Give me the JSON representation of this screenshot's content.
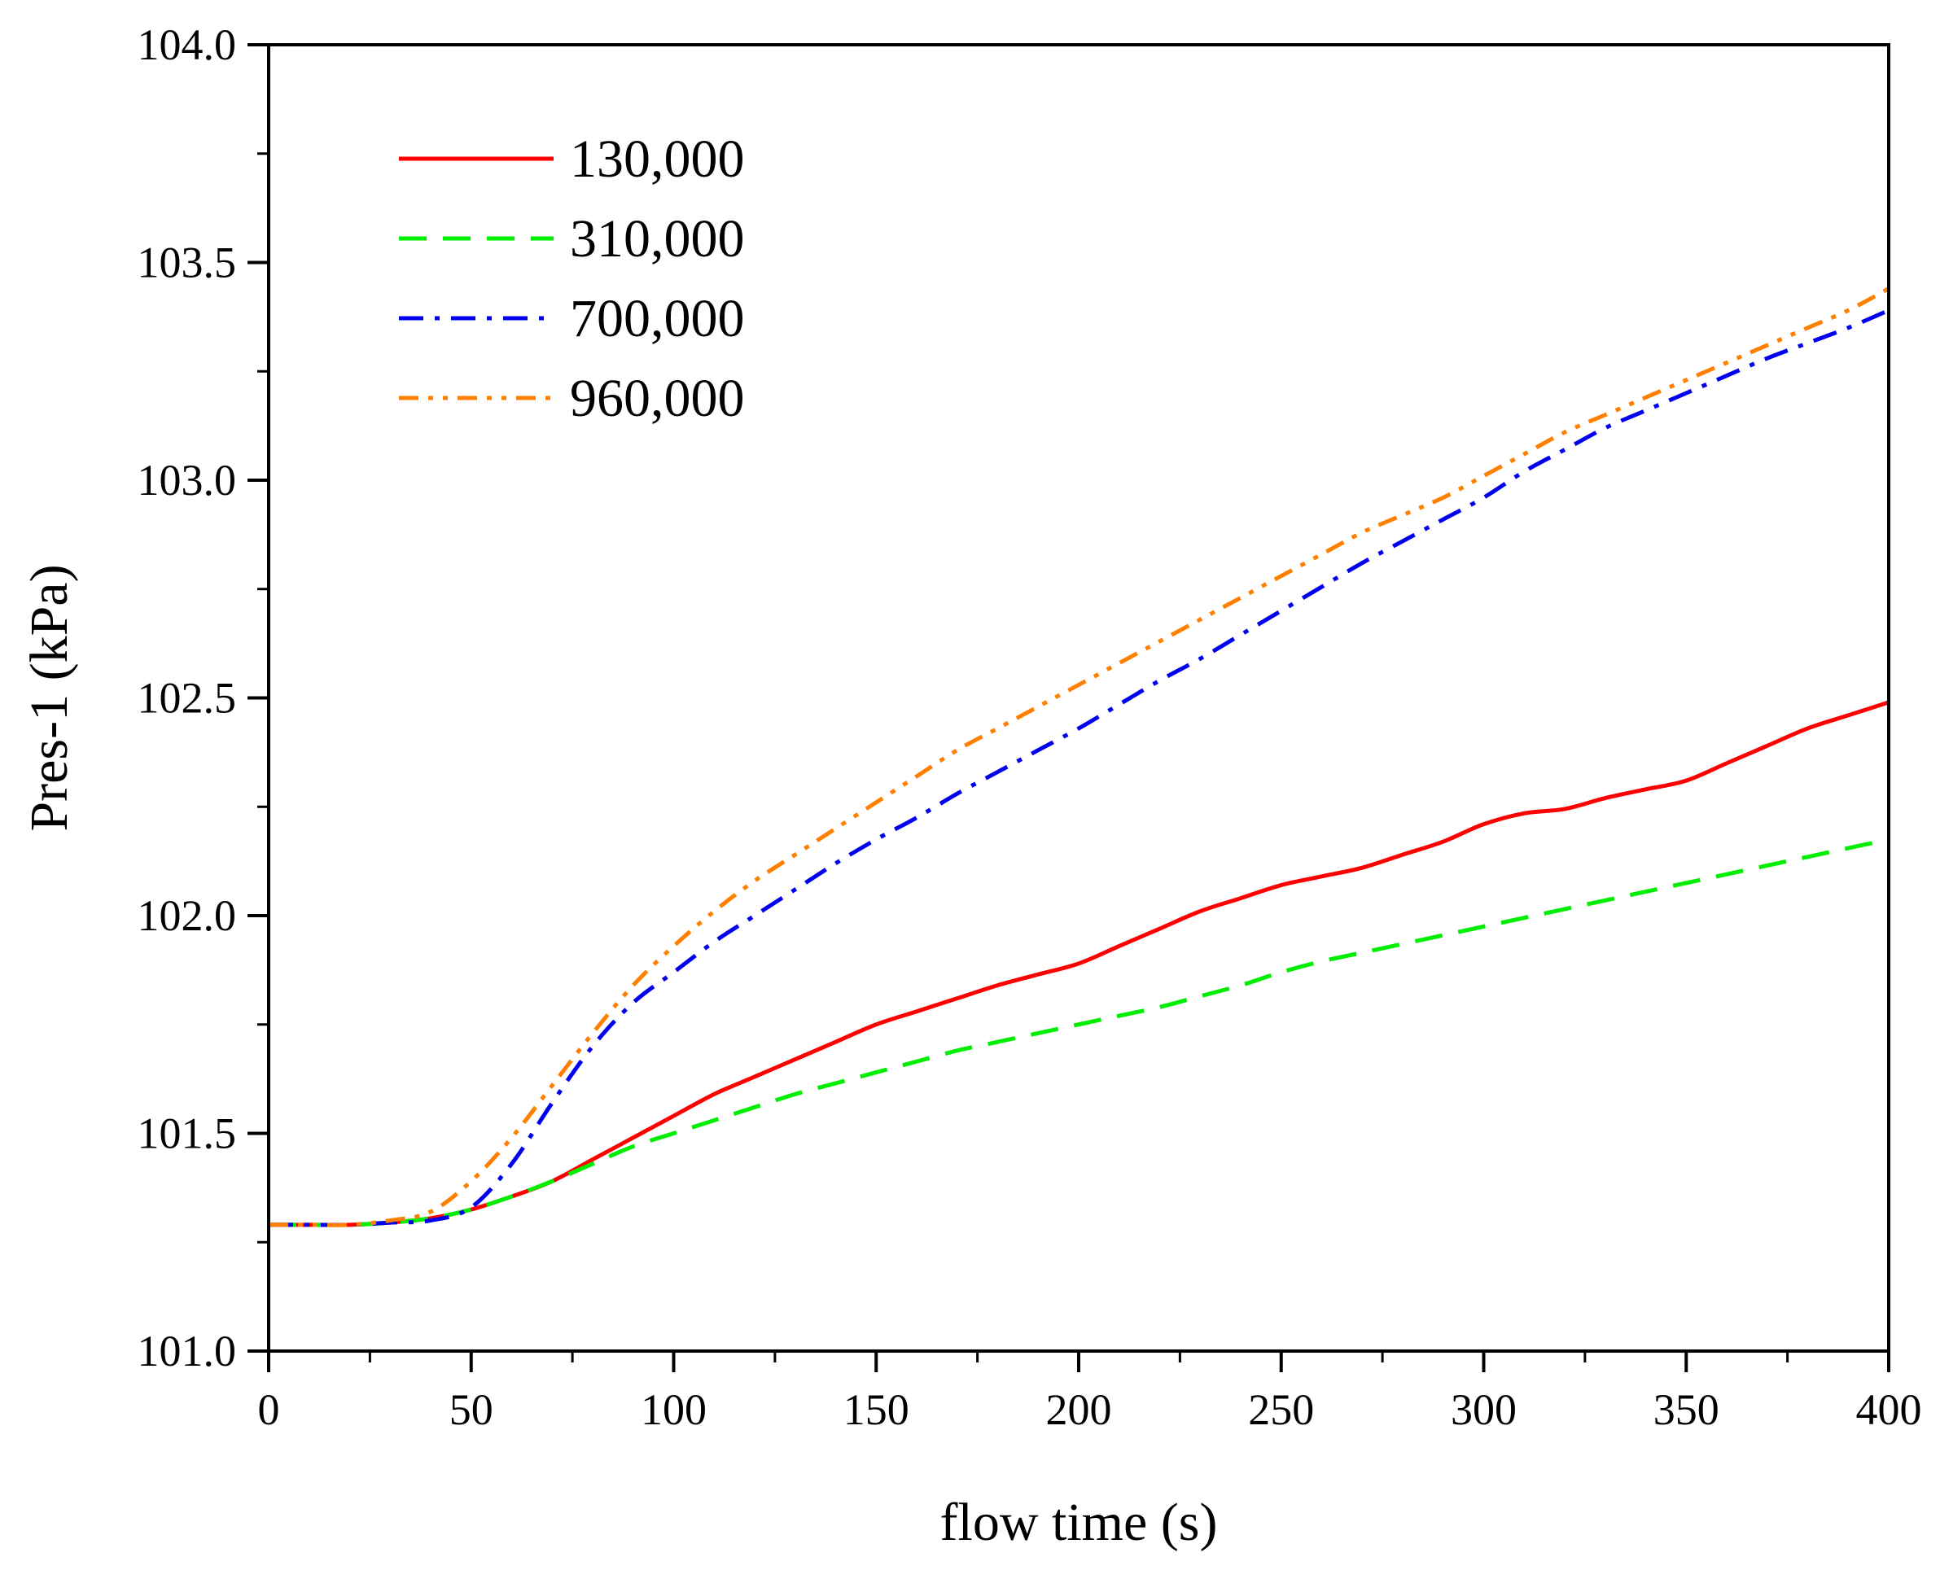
{
  "chart_data": {
    "type": "line",
    "title": "",
    "xlabel": "flow time (s)",
    "ylabel": "Pres-1 (kPa)",
    "xlim": [
      0,
      400
    ],
    "ylim": [
      101.0,
      104.0
    ],
    "xticks": [
      0,
      50,
      100,
      150,
      200,
      250,
      300,
      350,
      400
    ],
    "xtick_labels": [
      "0",
      "50",
      "100",
      "150",
      "200",
      "250",
      "300",
      "350",
      "400"
    ],
    "yticks": [
      101.0,
      101.5,
      102.0,
      102.5,
      103.0,
      103.5,
      104.0
    ],
    "ytick_labels": [
      "101.0",
      "101.5",
      "102.0",
      "102.5",
      "103.0",
      "103.5",
      "104.0"
    ],
    "grid": false,
    "legend_position": "top-left",
    "series": [
      {
        "name": "130,000",
        "color": "#ff0000",
        "style": "solid",
        "x": [
          0,
          10,
          20,
          30,
          40,
          50,
          60,
          70,
          80,
          90,
          100,
          110,
          120,
          130,
          140,
          150,
          160,
          170,
          180,
          190,
          200,
          210,
          220,
          230,
          240,
          250,
          260,
          270,
          280,
          290,
          300,
          310,
          320,
          330,
          340,
          350,
          360,
          370,
          380,
          390,
          400
        ],
        "y": [
          101.29,
          101.29,
          101.29,
          101.295,
          101.305,
          101.325,
          101.355,
          101.39,
          101.44,
          101.49,
          101.54,
          101.59,
          101.63,
          101.67,
          101.71,
          101.75,
          101.78,
          101.81,
          101.84,
          101.865,
          101.89,
          101.93,
          101.97,
          102.01,
          102.04,
          102.07,
          102.09,
          102.11,
          102.14,
          102.17,
          102.21,
          102.235,
          102.245,
          102.27,
          102.29,
          102.31,
          102.35,
          102.39,
          102.43,
          102.46,
          102.49
        ]
      },
      {
        "name": "310,000",
        "color": "#00ee00",
        "style": "dashed",
        "x": [
          0,
          10,
          20,
          30,
          40,
          50,
          60,
          70,
          80,
          90,
          100,
          110,
          120,
          130,
          140,
          150,
          160,
          170,
          180,
          190,
          200,
          210,
          220,
          230,
          240,
          250,
          260,
          270,
          280,
          290,
          300,
          310,
          320,
          330,
          340,
          350,
          360,
          370,
          380,
          390,
          400
        ],
        "y": [
          101.29,
          101.29,
          101.29,
          101.295,
          101.305,
          101.325,
          101.355,
          101.39,
          101.43,
          101.47,
          101.5,
          101.53,
          101.56,
          101.59,
          101.615,
          101.64,
          101.665,
          101.69,
          101.71,
          101.73,
          101.75,
          101.77,
          101.79,
          101.815,
          101.84,
          101.87,
          101.895,
          101.915,
          101.935,
          101.955,
          101.975,
          101.995,
          102.015,
          102.035,
          102.055,
          102.075,
          102.095,
          102.115,
          102.135,
          102.155,
          102.175
        ]
      },
      {
        "name": "700,000",
        "color": "#0000ee",
        "style": "dashdot",
        "x": [
          0,
          10,
          20,
          30,
          40,
          50,
          60,
          70,
          80,
          90,
          100,
          110,
          120,
          130,
          140,
          150,
          160,
          170,
          180,
          190,
          200,
          210,
          220,
          230,
          240,
          250,
          260,
          270,
          280,
          290,
          300,
          310,
          320,
          330,
          340,
          350,
          360,
          370,
          380,
          390,
          400
        ],
        "y": [
          101.29,
          101.29,
          101.29,
          101.295,
          101.3,
          101.33,
          101.43,
          101.57,
          101.7,
          101.8,
          101.87,
          101.94,
          102.0,
          102.06,
          102.12,
          102.175,
          102.225,
          102.28,
          102.33,
          102.38,
          102.43,
          102.485,
          102.54,
          102.59,
          102.645,
          102.7,
          102.755,
          102.81,
          102.86,
          102.91,
          102.96,
          103.02,
          103.07,
          103.12,
          103.16,
          103.2,
          103.24,
          103.28,
          103.315,
          103.35,
          103.39
        ]
      },
      {
        "name": "960,000",
        "color": "#ff8000",
        "style": "dashdotdot",
        "x": [
          0,
          10,
          20,
          30,
          40,
          50,
          60,
          70,
          80,
          90,
          100,
          110,
          120,
          130,
          140,
          150,
          160,
          170,
          180,
          190,
          200,
          210,
          220,
          230,
          240,
          250,
          260,
          270,
          280,
          290,
          300,
          310,
          320,
          330,
          340,
          350,
          360,
          370,
          380,
          390,
          400
        ],
        "y": [
          101.29,
          101.29,
          101.29,
          101.3,
          101.32,
          101.39,
          101.49,
          101.61,
          101.73,
          101.84,
          101.93,
          102.01,
          102.08,
          102.14,
          102.2,
          102.26,
          102.32,
          102.38,
          102.43,
          102.48,
          102.53,
          102.58,
          102.63,
          102.68,
          102.73,
          102.78,
          102.83,
          102.88,
          102.92,
          102.96,
          103.01,
          103.06,
          103.11,
          103.15,
          103.19,
          103.23,
          103.27,
          103.31,
          103.35,
          103.39,
          103.44
        ]
      }
    ]
  }
}
